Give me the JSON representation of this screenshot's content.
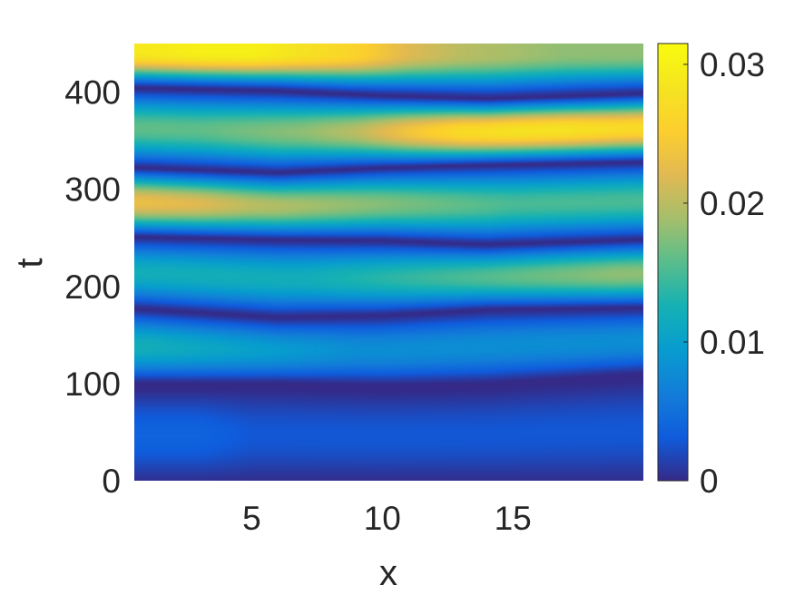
{
  "chart_data": {
    "type": "heatmap",
    "title": "",
    "xlabel": "x",
    "ylabel": "t",
    "xlim": [
      0.5,
      20
    ],
    "ylim": [
      0,
      450
    ],
    "x_ticks": [
      5,
      10,
      15
    ],
    "x_tick_labels": [
      "5",
      "10",
      "15"
    ],
    "y_ticks": [
      0,
      100,
      200,
      300,
      400
    ],
    "y_tick_labels": [
      "0",
      "100",
      "200",
      "300",
      "400"
    ],
    "colorbar": {
      "colormap": "parula",
      "lim": [
        0,
        0.0315
      ],
      "ticks": [
        0,
        0.01,
        0.02,
        0.03
      ],
      "tick_labels": [
        "0",
        "0.01",
        "0.02",
        "0.03"
      ]
    },
    "x": [
      1,
      3,
      5,
      7,
      9,
      11,
      13,
      15,
      17,
      19
    ],
    "t_minima": [
      {
        "x": [
          0.5,
          6,
          10,
          14,
          20
        ],
        "t": [
          100,
          100,
          98,
          100,
          110
        ]
      },
      {
        "x": [
          0.5,
          6,
          10,
          14,
          20
        ],
        "t": [
          177,
          168,
          170,
          176,
          178
        ]
      },
      {
        "x": [
          0.5,
          6,
          10,
          14,
          20
        ],
        "t": [
          251,
          248,
          247,
          243,
          248
        ]
      },
      {
        "x": [
          0.5,
          6,
          10,
          14,
          20
        ],
        "t": [
          322,
          317,
          322,
          325,
          328
        ]
      },
      {
        "x": [
          0.5,
          6,
          10,
          14,
          20
        ],
        "t": [
          404,
          401,
          396,
          393,
          398
        ]
      }
    ],
    "band_peaks": [
      {
        "t": 435,
        "values": [
          0.029,
          0.03,
          0.03,
          0.028,
          0.026,
          0.022,
          0.02,
          0.019,
          0.018,
          0.018
        ]
      },
      {
        "t": 363,
        "values": [
          0.016,
          0.016,
          0.017,
          0.018,
          0.02,
          0.024,
          0.027,
          0.028,
          0.028,
          0.027
        ]
      },
      {
        "t": 287,
        "values": [
          0.023,
          0.022,
          0.02,
          0.019,
          0.018,
          0.017,
          0.016,
          0.015,
          0.015,
          0.015
        ]
      },
      {
        "t": 215,
        "values": [
          0.012,
          0.012,
          0.012,
          0.012,
          0.013,
          0.014,
          0.015,
          0.016,
          0.017,
          0.018
        ]
      },
      {
        "t": 140,
        "values": [
          0.012,
          0.011,
          0.01,
          0.009,
          0.008,
          0.008,
          0.008,
          0.008,
          0.008,
          0.008
        ]
      },
      {
        "t": 60,
        "values": [
          0.004,
          0.004,
          0.003,
          0.003,
          0.003,
          0.003,
          0.003,
          0.003,
          0.003,
          0.003
        ]
      }
    ]
  }
}
